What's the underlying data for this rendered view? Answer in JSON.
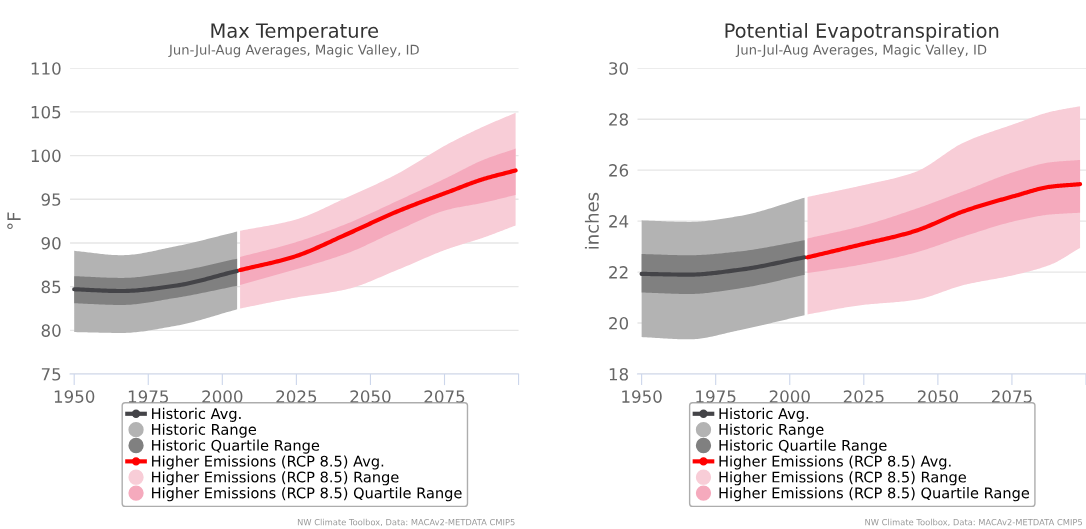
{
  "chart_data": [
    {
      "type": "line",
      "title": "Max Temperature",
      "subtitle": "Jun-Jul-Aug Averages, Magic Valley, ID",
      "ylabel": "°F",
      "xlim": [
        1948.6,
        2100
      ],
      "xticks": [
        1950,
        1975,
        2000,
        2025,
        2050,
        2075,
        {
          "value": 2100,
          "label": null
        }
      ],
      "ylim": [
        75,
        110
      ],
      "yticks": [
        75,
        80,
        85,
        90,
        95,
        100,
        105,
        110
      ],
      "grid": "y",
      "legend": "bottom",
      "annotations": [
        "NW Climate Toolbox, Data: MACAv2-METDATA CMIP5"
      ],
      "series": [
        {
          "name": "Historic Avg.",
          "color": "#444448",
          "x": [
            1950,
            1966,
            1984,
            2005
          ],
          "values": [
            84.7,
            84.5,
            85.1,
            86.8
          ]
        },
        {
          "name": "Historic Range",
          "type": "area",
          "color": "#b3b3b3",
          "x": [
            1950,
            1966,
            1984,
            2005
          ],
          "values": [
            null,
            null,
            null,
            null
          ],
          "lower": [
            79.8,
            79.7,
            80.5,
            82.4
          ],
          "upper": [
            89.1,
            88.6,
            89.6,
            91.3
          ]
        },
        {
          "name": "Historic Quartile Range",
          "type": "area",
          "color": "#808080",
          "x": [
            1950,
            1966,
            1984,
            2005
          ],
          "values": [
            null,
            null,
            null,
            null
          ],
          "lower": [
            83.1,
            82.9,
            83.7,
            85.1
          ],
          "upper": [
            86.2,
            86.0,
            86.7,
            88.2
          ]
        },
        {
          "name": "Higher Emissions (RCP 8.5) Avg.",
          "color": "#ff0000",
          "x": [
            2006,
            2024,
            2042,
            2059,
            2076,
            2088,
            2099
          ],
          "values": [
            86.9,
            88.4,
            91.0,
            93.6,
            95.8,
            97.3,
            98.3
          ]
        },
        {
          "name": "Higher Emissions (RCP 8.5) Range",
          "type": "area",
          "color": "#f8cdd7",
          "x": [
            2006,
            2024,
            2042,
            2059,
            2076,
            2088,
            2099
          ],
          "values": [
            null,
            null,
            null,
            null,
            null,
            null,
            null
          ],
          "lower": [
            82.5,
            83.7,
            84.7,
            86.9,
            89.3,
            90.6,
            92.0
          ],
          "upper": [
            91.4,
            92.6,
            95.2,
            97.9,
            101.3,
            103.3,
            104.9
          ]
        },
        {
          "name": "Higher Emissions (RCP 8.5) Quartile Range",
          "type": "area",
          "color": "#f5aabd",
          "x": [
            2006,
            2024,
            2042,
            2059,
            2076,
            2088,
            2099
          ],
          "values": [
            null,
            null,
            null,
            null,
            null,
            null,
            null
          ],
          "lower": [
            85.2,
            86.9,
            88.8,
            91.4,
            93.8,
            94.6,
            95.5
          ],
          "upper": [
            88.4,
            90.0,
            92.2,
            94.8,
            97.5,
            99.5,
            100.8
          ]
        }
      ]
    },
    {
      "type": "line",
      "title": "Potential Evapotranspiration",
      "subtitle": "Jun-Jul-Aug Averages, Magic Valley, ID",
      "ylabel": "inches",
      "xlim": [
        1948.6,
        2100
      ],
      "xticks": [
        1950,
        1975,
        2000,
        2025,
        2050,
        2075,
        {
          "value": 2100,
          "label": null
        }
      ],
      "ylim": [
        18,
        30
      ],
      "yticks": [
        18,
        20,
        22,
        24,
        26,
        28,
        30
      ],
      "grid": "y",
      "legend": "bottom",
      "annotations": [
        "NW Climate Toolbox, Data: MACAv2-METDATA CMIP5"
      ],
      "series": [
        {
          "name": "Historic Avg.",
          "color": "#444448",
          "x": [
            1950,
            1966,
            1983,
            2005
          ],
          "values": [
            21.93,
            21.9,
            22.09,
            22.58
          ]
        },
        {
          "name": "Historic Range",
          "type": "area",
          "color": "#b3b3b3",
          "x": [
            1950,
            1966,
            1983,
            2005
          ],
          "values": [
            null,
            null,
            null,
            null
          ],
          "lower": [
            19.45,
            19.36,
            19.72,
            20.31
          ],
          "upper": [
            24.03,
            23.97,
            24.2,
            24.92
          ]
        },
        {
          "name": "Historic Quartile Range",
          "type": "area",
          "color": "#808080",
          "x": [
            1950,
            1966,
            1983,
            2005
          ],
          "values": [
            null,
            null,
            null,
            null
          ],
          "lower": [
            21.2,
            21.14,
            21.36,
            21.89
          ],
          "upper": [
            22.71,
            22.66,
            22.81,
            23.25
          ]
        },
        {
          "name": "Higher Emissions (RCP 8.5) Avg.",
          "color": "#ff0000",
          "x": [
            2006,
            2024,
            2042,
            2059,
            2076,
            2088,
            2098
          ],
          "values": [
            22.58,
            23.08,
            23.6,
            24.4,
            24.99,
            25.35,
            25.45
          ]
        },
        {
          "name": "Higher Emissions (RCP 8.5) Range",
          "type": "area",
          "color": "#f8cdd7",
          "x": [
            2006,
            2024,
            2042,
            2059,
            2076,
            2088,
            2098
          ],
          "values": [
            null,
            null,
            null,
            null,
            null,
            null,
            null
          ],
          "lower": [
            20.34,
            20.7,
            20.9,
            21.5,
            21.89,
            22.29,
            22.95
          ],
          "upper": [
            24.95,
            25.39,
            25.91,
            27.1,
            27.82,
            28.29,
            28.51
          ]
        },
        {
          "name": "Higher Emissions (RCP 8.5) Quartile Range",
          "type": "area",
          "color": "#f5aabd",
          "x": [
            2006,
            2024,
            2042,
            2059,
            2076,
            2088,
            2098
          ],
          "values": [
            null,
            null,
            null,
            null,
            null,
            null,
            null
          ],
          "lower": [
            21.96,
            22.29,
            22.75,
            23.41,
            24.0,
            24.26,
            24.33
          ],
          "upper": [
            23.32,
            23.8,
            24.46,
            25.19,
            25.94,
            26.31,
            26.4
          ]
        }
      ]
    }
  ]
}
